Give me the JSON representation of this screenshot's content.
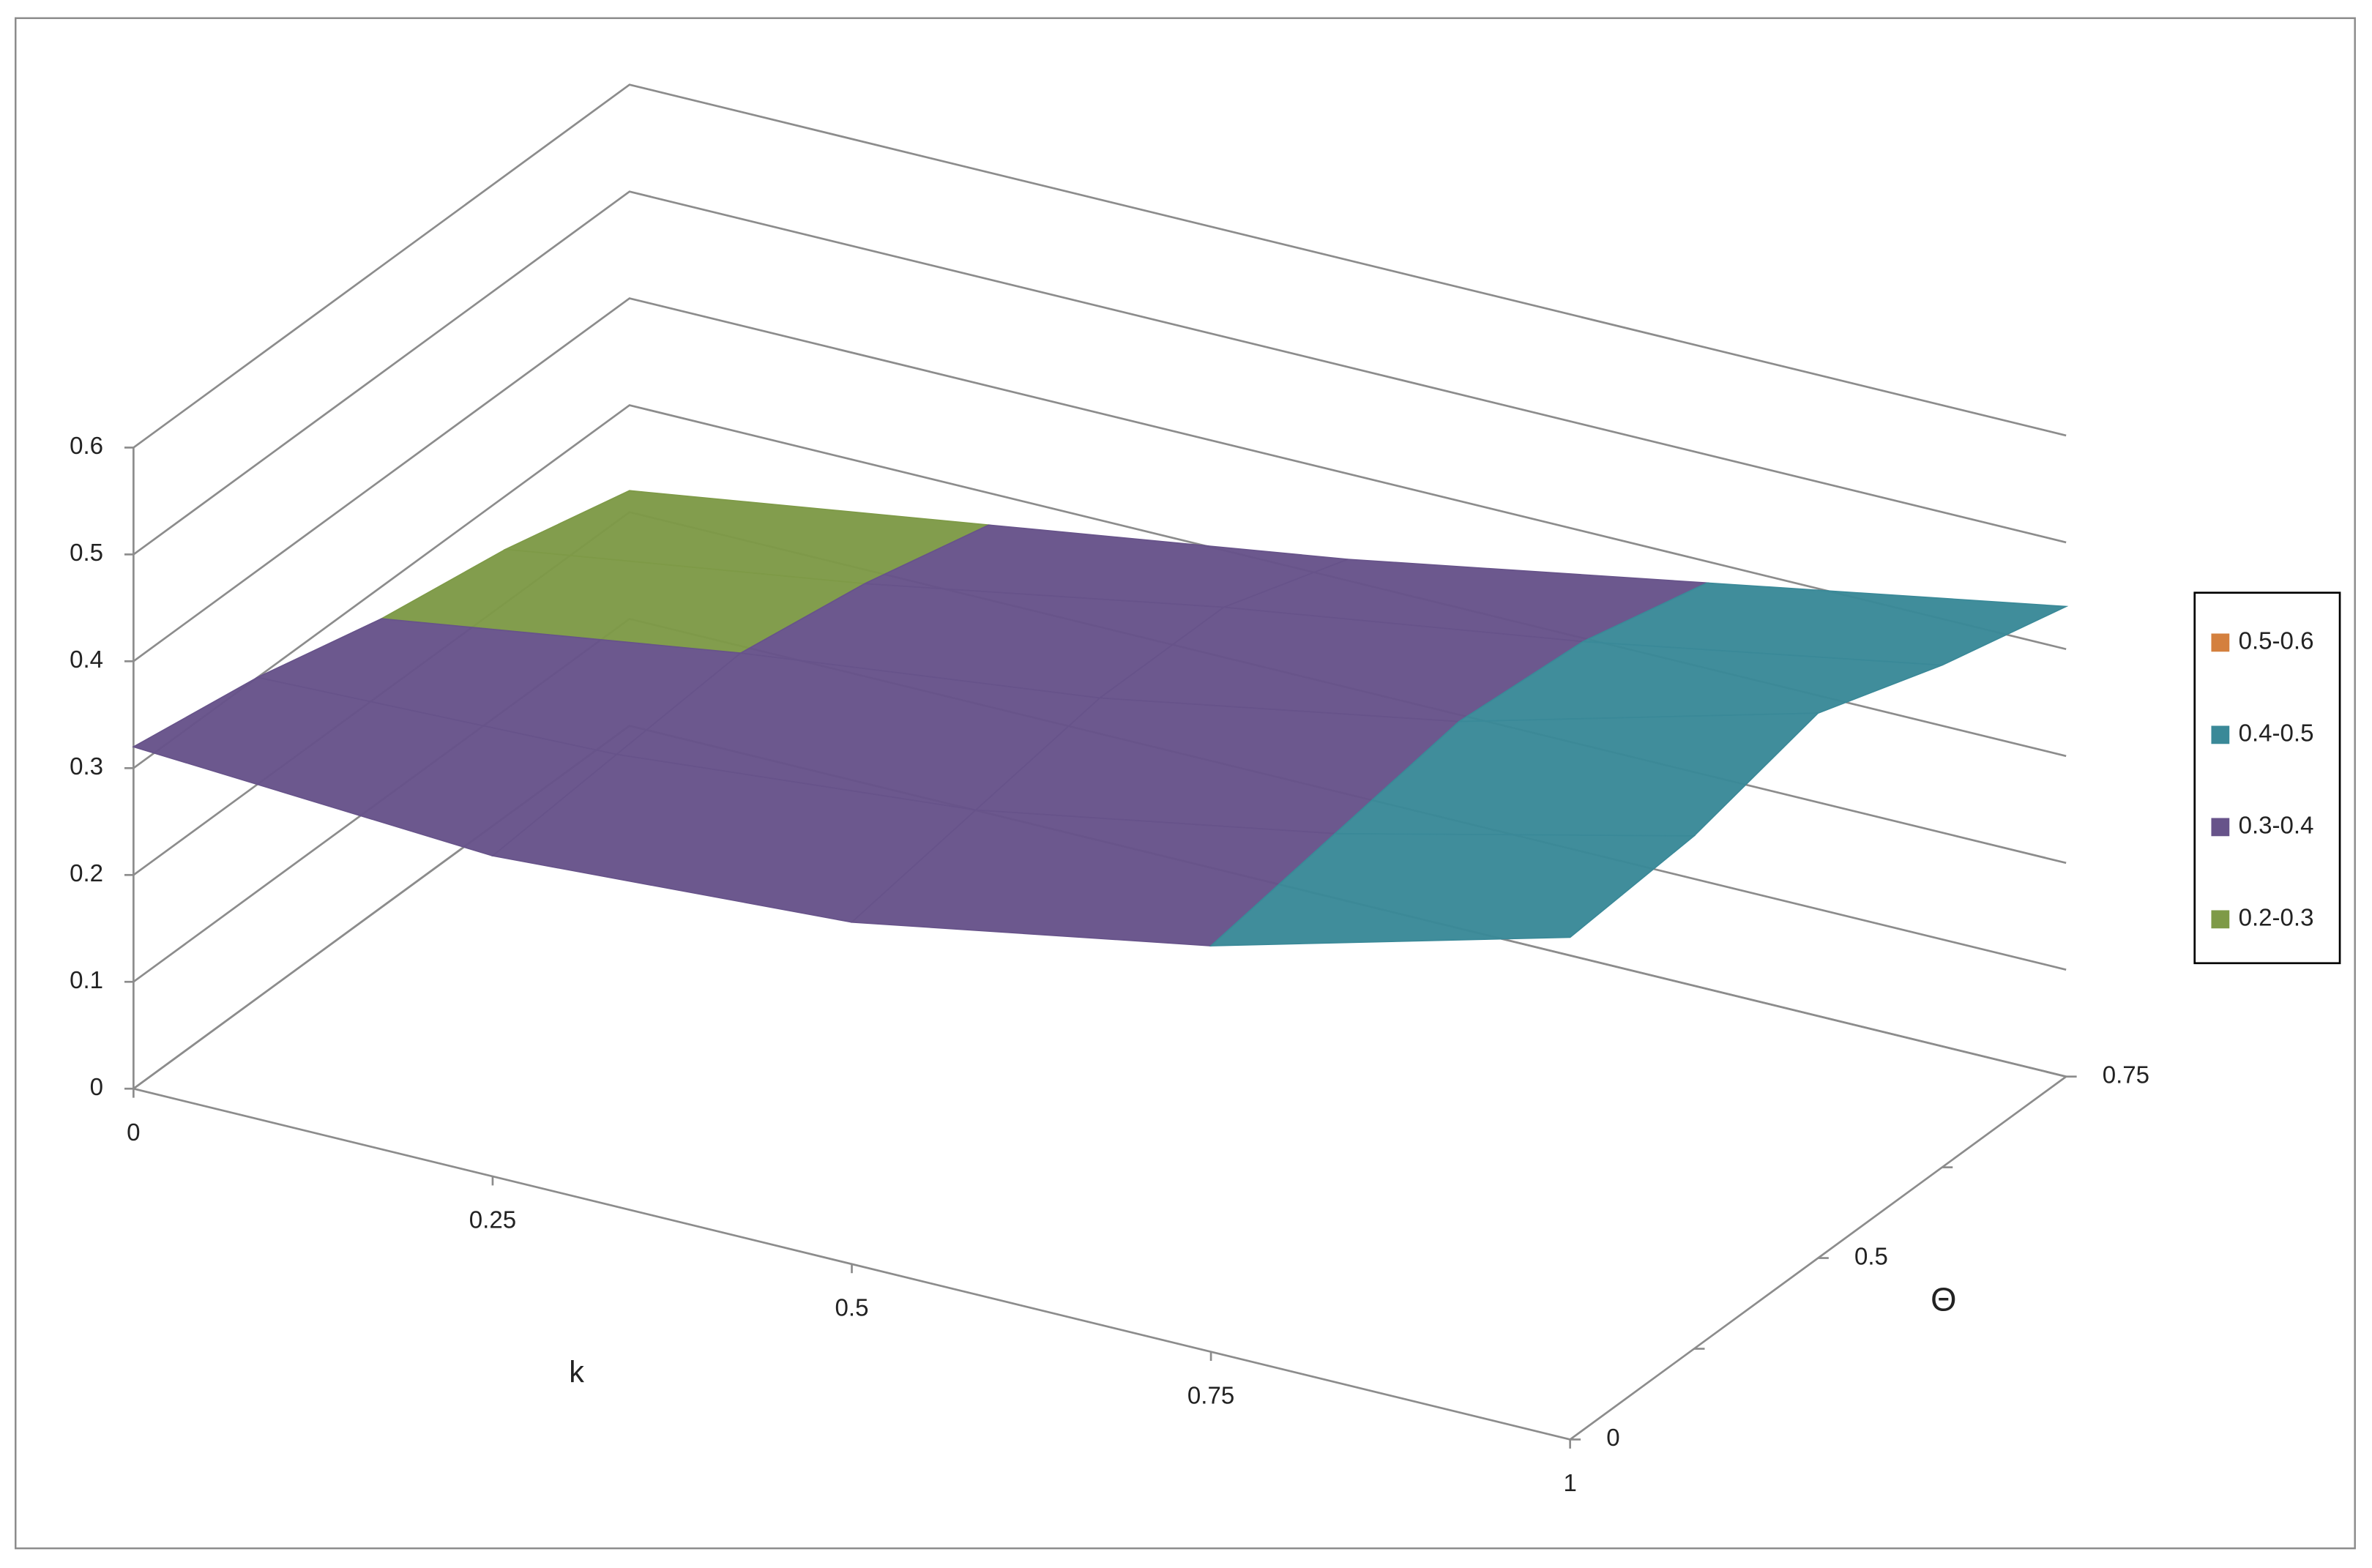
{
  "chart_data": {
    "type": "surface",
    "x_label": "k",
    "depth_label": "Θ",
    "categories": [
      0,
      0.25,
      0.5,
      0.75,
      1
    ],
    "depth": [
      0,
      null,
      0.5,
      null,
      0.75
    ],
    "values": [
      [
        0.32,
        0.3,
        0.32,
        0.38,
        0.47
      ],
      [
        0.3,
        0.31,
        0.34,
        0.4,
        0.48
      ],
      [
        0.27,
        0.32,
        0.36,
        0.42,
        0.51
      ],
      [
        0.25,
        0.3,
        0.36,
        0.41,
        0.47
      ],
      [
        0.22,
        0.27,
        0.32,
        0.38,
        0.44
      ]
    ],
    "zlim": [
      0,
      0.6
    ],
    "zticks": [
      0,
      0.1,
      0.2,
      0.3,
      0.4,
      0.5,
      0.6
    ],
    "bands": [
      {
        "name": "0.5-0.6",
        "color": "#d4803e",
        "from": 0.5,
        "to": 0.6
      },
      {
        "name": "0.4-0.5",
        "color": "#3a8998",
        "from": 0.4,
        "to": 0.5
      },
      {
        "name": "0.3-0.4",
        "color": "#67538a",
        "from": 0.3,
        "to": 0.4
      },
      {
        "name": "0.2-0.3",
        "color": "#7e9a47",
        "from": 0.2,
        "to": 0.3
      }
    ]
  }
}
